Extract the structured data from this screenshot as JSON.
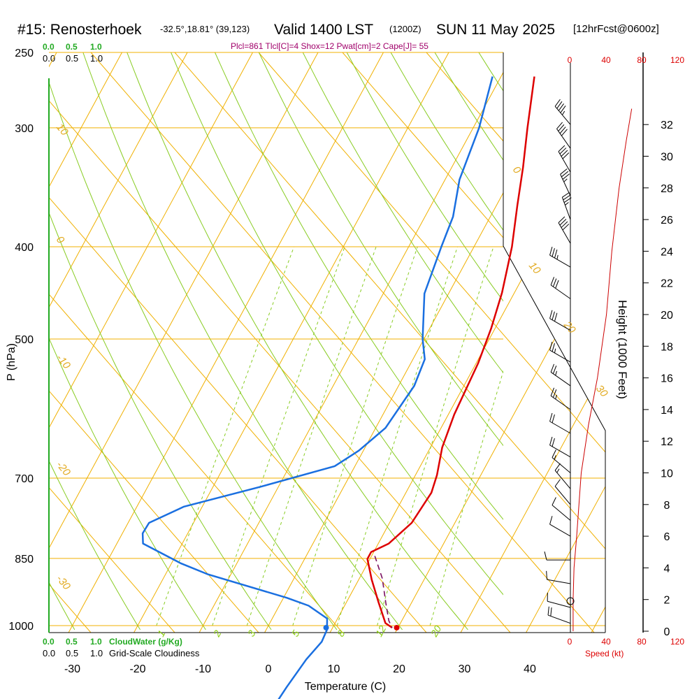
{
  "header": {
    "title_left": "#15: Renosterhoek",
    "coords": "-32.5°,18.81° (39,123)",
    "valid": "Valid 1400 LST",
    "utc": "(1200Z)",
    "date": "SUN 11 May 2025",
    "forecast": "[12hrFcst@0600z]",
    "indices": "Plcl=861 Tlcl[C]=4 Shox=12 Pwat[cm]=2 Cape[J]= 55"
  },
  "cloudwater": {
    "ticks_top": [
      "0.0",
      "0.5",
      "1.0"
    ],
    "ticks_bottom": [
      "0.0",
      "0.5",
      "1.0"
    ],
    "label": "CloudWater (g/Kg)"
  },
  "cloudiness": {
    "ticks_top": [
      "0.0",
      "0.5",
      "1.0"
    ],
    "ticks_bottom": [
      "0.0",
      "0.5",
      "1.0"
    ],
    "label": "Grid-Scale Cloudiness"
  },
  "speed_axis": {
    "ticks": [
      "0",
      "40",
      "80",
      "120"
    ],
    "label": "Speed (kt)"
  },
  "colors": {
    "temperature": "#dd0000",
    "dewpoint": "#1a6fe0",
    "parcel": "#7a1060",
    "isotherm": "#f0b000",
    "adiabat": "#88cc22",
    "cloud": "#22aa22",
    "wind_speed": "#cc0000"
  },
  "chart_data": {
    "type": "line",
    "ylabel": "P (hPa)",
    "xlabel": "Temperature (C)",
    "y2label": "Height (1000 Feet)",
    "x_ticks": [
      "-30",
      "-20",
      "-10",
      "0",
      "10",
      "20",
      "30",
      "40"
    ],
    "p_ticks": [
      "250",
      "300",
      "400",
      "500",
      "700",
      "850",
      "1000"
    ],
    "height_ticks": [
      "0",
      "2",
      "4",
      "6",
      "8",
      "10",
      "12",
      "14",
      "16",
      "18",
      "20",
      "22",
      "24",
      "26",
      "28",
      "30",
      "32"
    ],
    "isotherm_labels": [
      "10",
      "0",
      "-10",
      "-20",
      "-30",
      "0",
      "10",
      "20",
      "30"
    ],
    "mixing_ratio_labels": [
      "1",
      "2",
      "3",
      "5",
      "8",
      "12",
      "20"
    ],
    "xlim": [
      -34,
      46
    ],
    "plim": [
      250,
      1010
    ],
    "series": [
      {
        "points": [
          [
            -4.9,
            265
          ],
          [
            -1.7,
            300
          ],
          [
            0.9,
            330
          ],
          [
            3.2,
            362
          ],
          [
            5.8,
            400
          ],
          [
            8.1,
            447
          ],
          [
            9.4,
            487
          ],
          [
            10.3,
            530
          ],
          [
            10.9,
            600
          ],
          [
            11.8,
            650
          ],
          [
            13.3,
            695
          ],
          [
            13.9,
            725
          ],
          [
            13.4,
            780
          ],
          [
            11.6,
            820
          ],
          [
            9.6,
            837
          ],
          [
            9.6,
            851
          ],
          [
            12.0,
            895
          ],
          [
            14.9,
            945
          ],
          [
            17.7,
            994
          ],
          [
            19.1,
            1005
          ]
        ]
      },
      {
        "points": [
          [
            -11.3,
            265
          ],
          [
            -9.1,
            300
          ],
          [
            -7.8,
            340
          ],
          [
            -5.7,
            372
          ],
          [
            -5.0,
            400
          ],
          [
            -3.7,
            448
          ],
          [
            -0.2,
            500
          ],
          [
            1.8,
            525
          ],
          [
            2.4,
            560
          ],
          [
            1.5,
            620
          ],
          [
            -0.7,
            655
          ],
          [
            -3.1,
            680
          ],
          [
            -12.8,
            715
          ],
          [
            -22.8,
            750
          ],
          [
            -26.8,
            780
          ],
          [
            -26.9,
            800
          ],
          [
            -26.0,
            820
          ],
          [
            -18.6,
            860
          ],
          [
            -13.6,
            883
          ],
          [
            0.5,
            935
          ],
          [
            4.5,
            953
          ],
          [
            8.4,
            983
          ],
          [
            9.3,
            1010
          ],
          [
            9.5,
            1040
          ],
          [
            8.6,
            1085
          ],
          [
            7.9,
            1160
          ],
          [
            7.5,
            1225
          ],
          [
            7.4,
            1290
          ]
        ]
      },
      {
        "points": [
          [
            10.5,
            845
          ],
          [
            13.5,
            892
          ],
          [
            16.0,
            945
          ],
          [
            18.0,
            988
          ],
          [
            19.1,
            1005
          ]
        ]
      }
    ],
    "surface_temperature_marker": [
      19.8,
      1005
    ],
    "surface_dewpoint_marker": [
      9.0,
      1005
    ],
    "wind_speed_profile_kt": [
      [
        3,
        0
      ],
      [
        3,
        2
      ],
      [
        4,
        4
      ],
      [
        7,
        6
      ],
      [
        12,
        10
      ],
      [
        20,
        13
      ],
      [
        30,
        16
      ],
      [
        40,
        20
      ],
      [
        46,
        24
      ],
      [
        54,
        28
      ],
      [
        62,
        31
      ],
      [
        68,
        33
      ]
    ],
    "wind_barbs": [
      {
        "h": 0.5,
        "dir": 290,
        "spd": 20
      },
      {
        "h": 1.5,
        "dir": 285,
        "spd": 10
      },
      {
        "h": 3,
        "dir": 280,
        "spd": 10
      },
      {
        "h": 4.5,
        "dir": 270,
        "spd": 10
      },
      {
        "h": 6,
        "dir": 300,
        "spd": 10
      },
      {
        "h": 7,
        "dir": 310,
        "spd": 10
      },
      {
        "h": 8,
        "dir": 320,
        "spd": 10
      },
      {
        "h": 9,
        "dir": 320,
        "spd": 15
      },
      {
        "h": 10,
        "dir": 310,
        "spd": 15
      },
      {
        "h": 11,
        "dir": 300,
        "spd": 20
      },
      {
        "h": 12.5,
        "dir": 300,
        "spd": 20
      },
      {
        "h": 14,
        "dir": 305,
        "spd": 25
      },
      {
        "h": 15.5,
        "dir": 305,
        "spd": 25
      },
      {
        "h": 17,
        "dir": 300,
        "spd": 25
      },
      {
        "h": 19,
        "dir": 300,
        "spd": 30
      },
      {
        "h": 21,
        "dir": 305,
        "spd": 30
      },
      {
        "h": 23,
        "dir": 300,
        "spd": 35
      },
      {
        "h": 24.5,
        "dir": 330,
        "spd": 40
      },
      {
        "h": 26,
        "dir": 340,
        "spd": 35
      },
      {
        "h": 27.5,
        "dir": 335,
        "spd": 35
      },
      {
        "h": 29,
        "dir": 330,
        "spd": 40
      },
      {
        "h": 30.5,
        "dir": 325,
        "spd": 40
      },
      {
        "h": 32,
        "dir": 320,
        "spd": 45
      }
    ]
  }
}
